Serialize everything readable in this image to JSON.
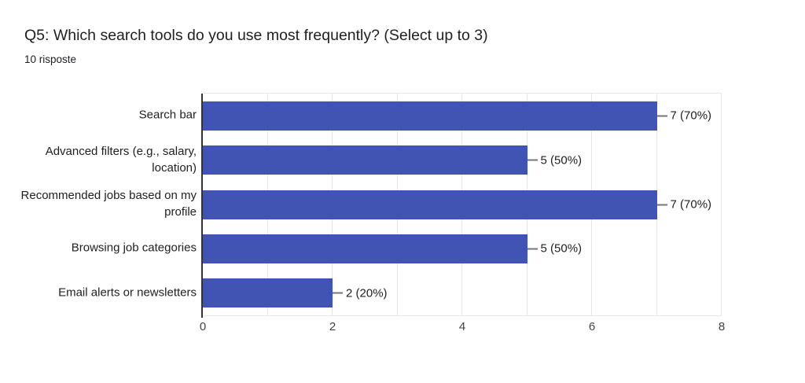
{
  "header": {
    "title": "Q5: Which search tools do you use most frequently? (Select up to 3)",
    "subtitle": "10 risposte"
  },
  "colors": {
    "bar": "#4154b3",
    "gridline": "#e7e7e7",
    "axis_line": "#333333",
    "connector": "#757575",
    "label_text": "#212121",
    "tick_text": "#424242",
    "background": "#ffffff"
  },
  "chart_data": {
    "type": "bar",
    "orientation": "horizontal",
    "title": "Q5: Which search tools do you use most frequently? (Select up to 3)",
    "subtitle": "10 risposte",
    "response_count": 10,
    "categories": [
      "Search bar",
      "Advanced filters (e.g., salary, location)",
      "Recommended jobs based on my profile",
      "Browsing job categories",
      "Email alerts or newsletters"
    ],
    "category_lines": [
      [
        "Search bar"
      ],
      [
        "Advanced filters (e.g., salary,",
        "location)"
      ],
      [
        "Recommended jobs based on my",
        "profile"
      ],
      [
        "Browsing job categories"
      ],
      [
        "Email alerts or newsletters"
      ]
    ],
    "values": [
      7,
      5,
      7,
      5,
      2
    ],
    "value_labels": [
      "7 (70%)",
      "5 (50%)",
      "7 (70%)",
      "5 (50%)",
      "2 (20%)"
    ],
    "xlim": [
      0,
      8
    ],
    "xticks": [
      0,
      2,
      4,
      6,
      8
    ],
    "grid_interval": 1,
    "legend": "none",
    "ylabel": "",
    "xlabel": ""
  }
}
